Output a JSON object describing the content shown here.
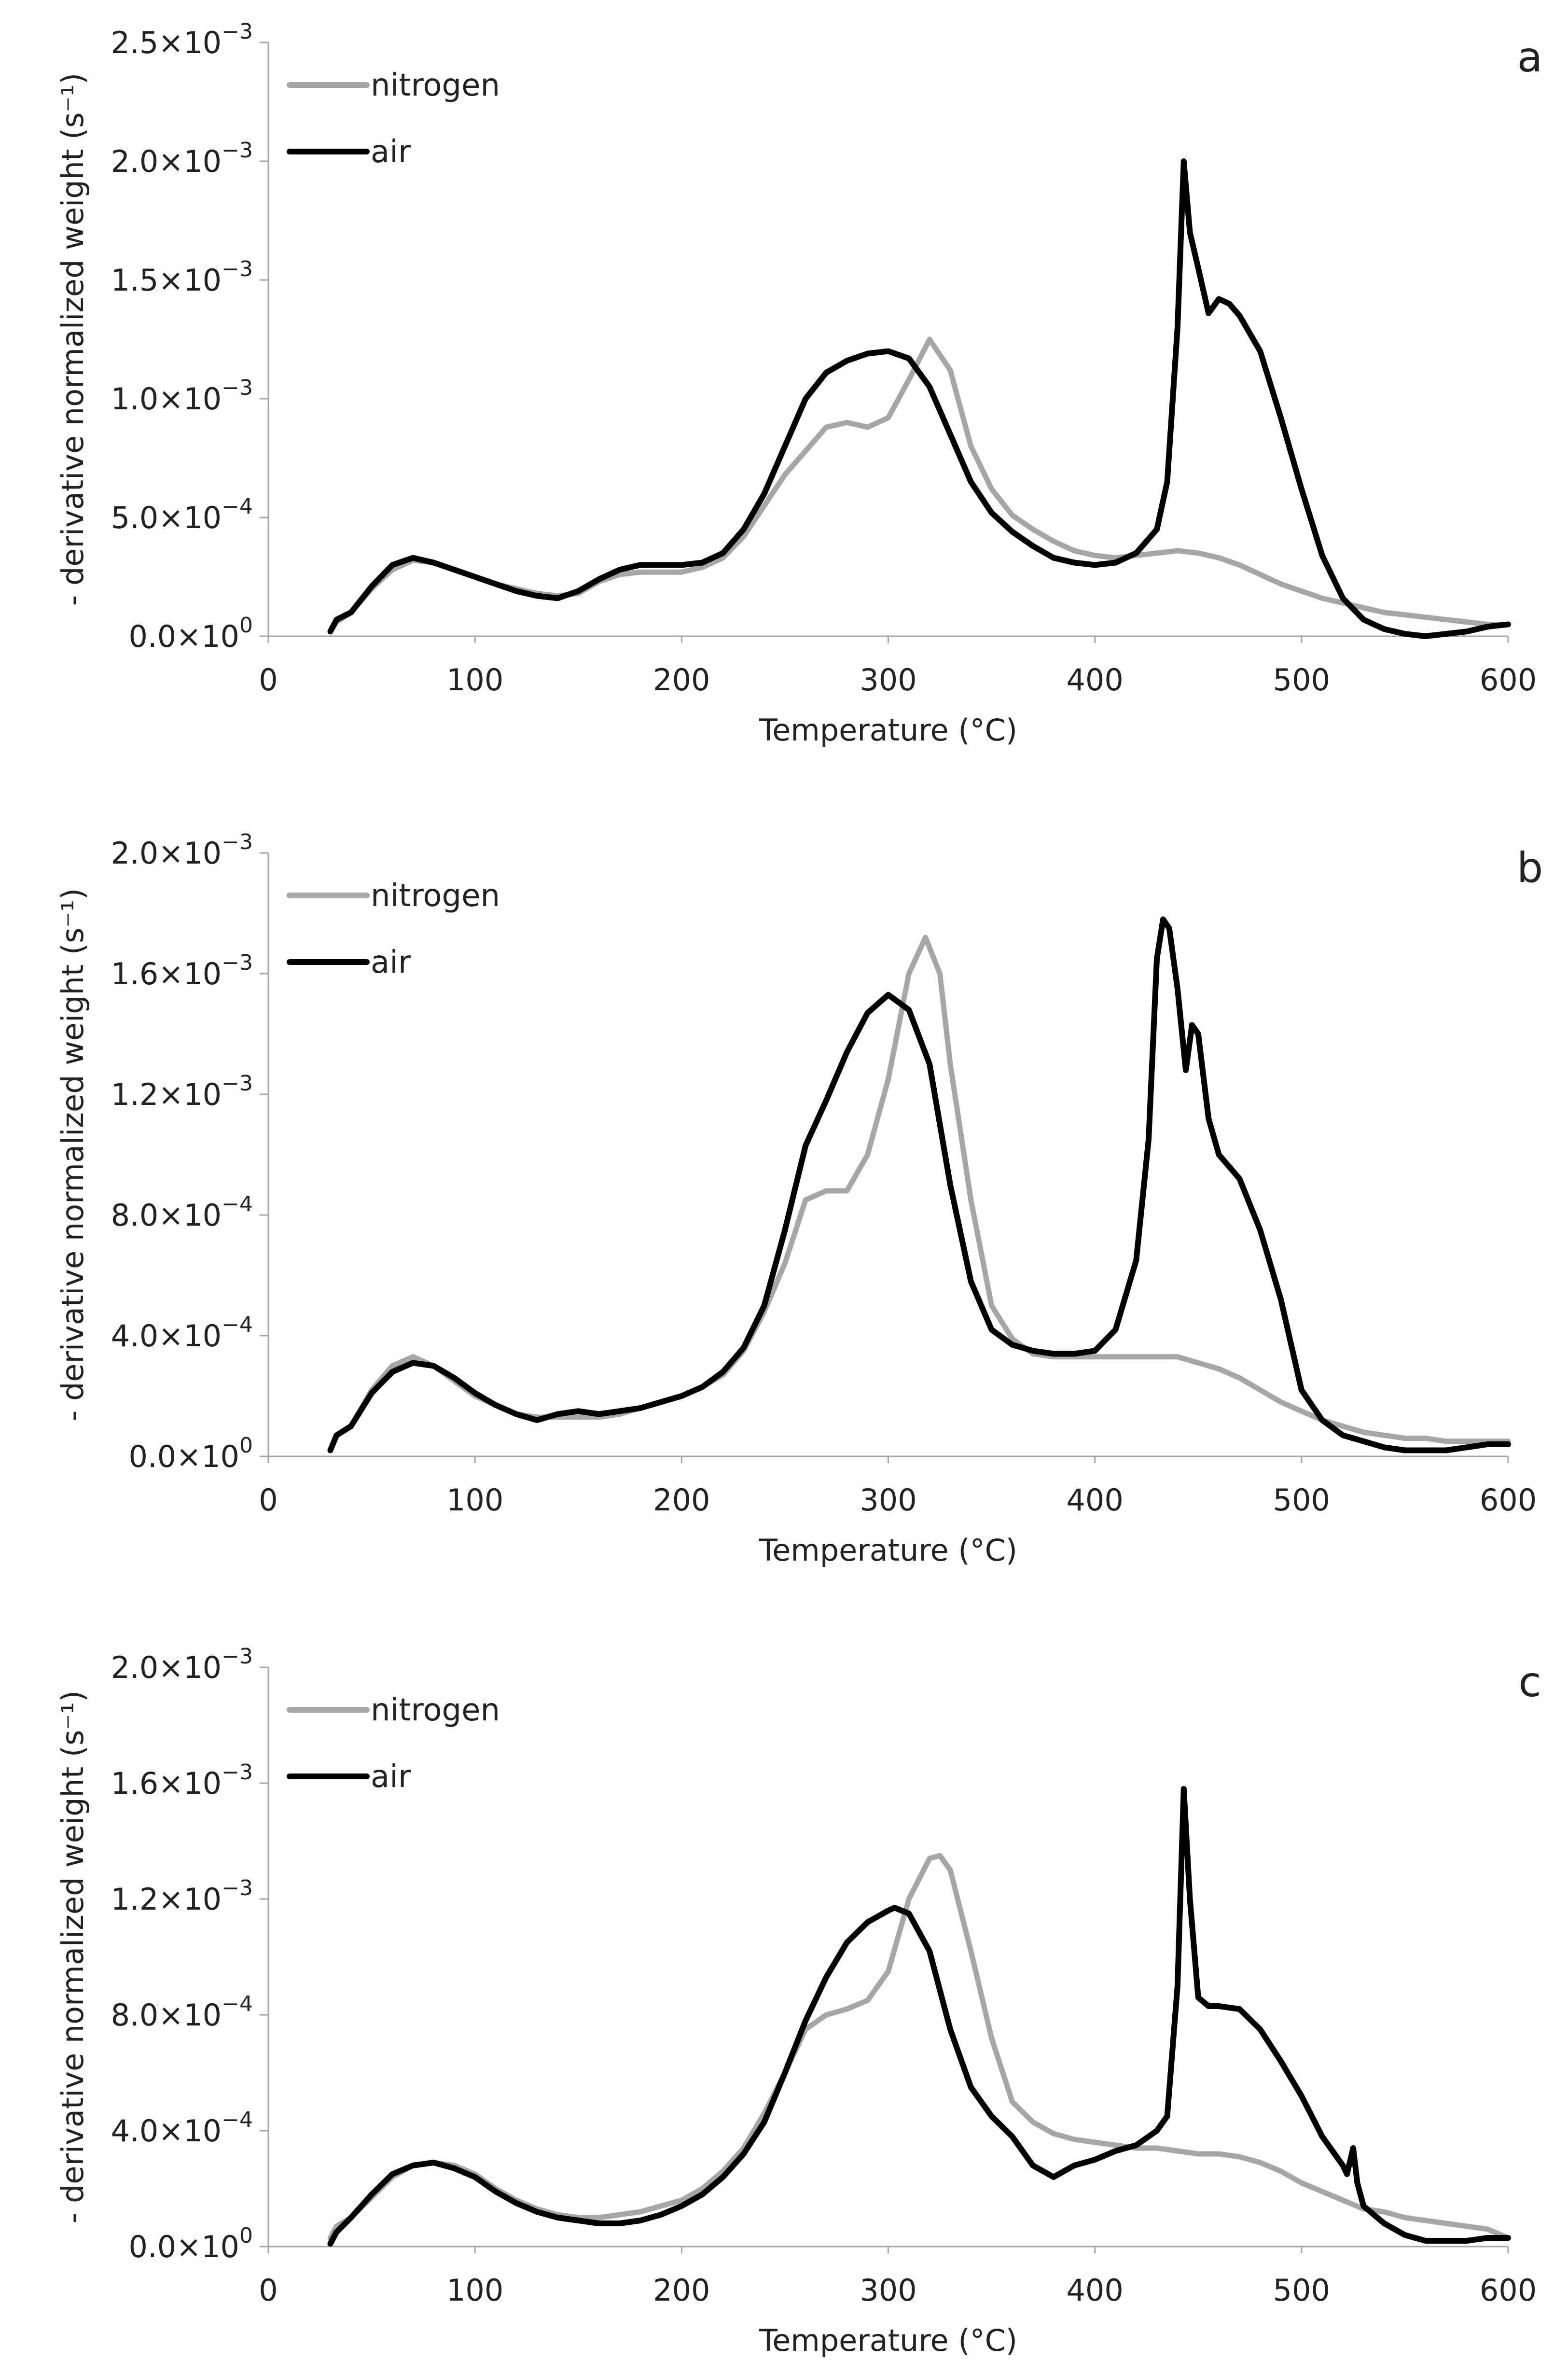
{
  "chart_data": [
    {
      "type": "line",
      "panel": "a",
      "xlabel": "Temperature (°C)",
      "ylabel": "- derivative normalized weight (s⁻¹)",
      "xlim": [
        0,
        600
      ],
      "ylim": [
        0,
        0.0025
      ],
      "x_ticks": [
        0,
        100,
        200,
        300,
        400,
        500,
        600
      ],
      "x_tick_labels": [
        "0",
        "100",
        "200",
        "300",
        "400",
        "500",
        "600"
      ],
      "y_ticks": [
        0,
        0.0005,
        0.001,
        0.0015,
        0.002,
        0.0025
      ],
      "y_tick_labels": [
        {
          "mant": "0.0×10",
          "exp": "0"
        },
        {
          "mant": "5.0×10",
          "exp": "−4"
        },
        {
          "mant": "1.0×10",
          "exp": "−3"
        },
        {
          "mant": "1.5×10",
          "exp": "−3"
        },
        {
          "mant": "2.0×10",
          "exp": "−3"
        },
        {
          "mant": "2.5×10",
          "exp": "−3"
        }
      ],
      "legend": [
        "nitrogen",
        "air"
      ],
      "series": [
        {
          "name": "nitrogen",
          "color": "#a6a6a6",
          "x": [
            30,
            33,
            40,
            50,
            60,
            70,
            80,
            90,
            100,
            110,
            120,
            130,
            140,
            150,
            160,
            170,
            180,
            190,
            200,
            210,
            220,
            230,
            240,
            250,
            260,
            270,
            280,
            290,
            300,
            310,
            320,
            330,
            340,
            350,
            360,
            370,
            380,
            390,
            400,
            410,
            420,
            430,
            440,
            450,
            460,
            470,
            480,
            490,
            500,
            510,
            520,
            530,
            540,
            550,
            560,
            570,
            580,
            590,
            600
          ],
          "y": [
            2e-05,
            6e-05,
            0.0001,
            0.0002,
            0.00028,
            0.00032,
            0.00031,
            0.00028,
            0.00025,
            0.00022,
            0.0002,
            0.00018,
            0.00017,
            0.00018,
            0.00023,
            0.00026,
            0.00027,
            0.00027,
            0.00027,
            0.00029,
            0.00033,
            0.00042,
            0.00055,
            0.00068,
            0.00078,
            0.00088,
            0.0009,
            0.00088,
            0.00092,
            0.00108,
            0.00125,
            0.00112,
            0.0008,
            0.00062,
            0.00051,
            0.00045,
            0.0004,
            0.00036,
            0.00034,
            0.00033,
            0.00034,
            0.00035,
            0.00036,
            0.00035,
            0.00033,
            0.0003,
            0.00026,
            0.00022,
            0.00019,
            0.00016,
            0.00014,
            0.00012,
            0.0001,
            9e-05,
            8e-05,
            7e-05,
            6e-05,
            5e-05,
            5e-05
          ]
        },
        {
          "name": "air",
          "color": "#000000",
          "x": [
            30,
            33,
            40,
            50,
            60,
            70,
            80,
            90,
            100,
            110,
            120,
            130,
            140,
            150,
            160,
            170,
            180,
            190,
            200,
            210,
            220,
            230,
            240,
            250,
            260,
            270,
            280,
            290,
            300,
            310,
            320,
            330,
            340,
            350,
            360,
            370,
            380,
            390,
            400,
            410,
            420,
            430,
            435,
            440,
            443,
            446,
            450,
            455,
            460,
            465,
            470,
            480,
            490,
            500,
            510,
            520,
            530,
            540,
            550,
            560,
            570,
            580,
            590,
            600
          ],
          "y": [
            2e-05,
            7e-05,
            0.0001,
            0.00021,
            0.0003,
            0.00033,
            0.00031,
            0.00028,
            0.00025,
            0.00022,
            0.00019,
            0.00017,
            0.00016,
            0.00019,
            0.00024,
            0.00028,
            0.0003,
            0.0003,
            0.0003,
            0.00031,
            0.00035,
            0.00045,
            0.0006,
            0.0008,
            0.001,
            0.00111,
            0.00116,
            0.00119,
            0.0012,
            0.00117,
            0.00105,
            0.00085,
            0.00065,
            0.00052,
            0.00044,
            0.00038,
            0.00033,
            0.00031,
            0.0003,
            0.00031,
            0.00035,
            0.00045,
            0.00065,
            0.0013,
            0.002,
            0.0017,
            0.00155,
            0.00136,
            0.00142,
            0.0014,
            0.00135,
            0.0012,
            0.00092,
            0.00062,
            0.00034,
            0.00016,
            7e-05,
            3e-05,
            1e-05,
            0,
            1e-05,
            2e-05,
            4e-05,
            5e-05
          ]
        }
      ]
    },
    {
      "type": "line",
      "panel": "b",
      "xlabel": "Temperature (°C)",
      "ylabel": "- derivative normalized weight (s⁻¹)",
      "xlim": [
        0,
        600
      ],
      "ylim": [
        0,
        0.002
      ],
      "x_ticks": [
        0,
        100,
        200,
        300,
        400,
        500,
        600
      ],
      "x_tick_labels": [
        "0",
        "100",
        "200",
        "300",
        "400",
        "500",
        "600"
      ],
      "y_ticks": [
        0,
        0.0004,
        0.0008,
        0.0012,
        0.0016,
        0.002
      ],
      "y_tick_labels": [
        {
          "mant": "0.0×10",
          "exp": "0"
        },
        {
          "mant": "4.0×10",
          "exp": "−4"
        },
        {
          "mant": "8.0×10",
          "exp": "−4"
        },
        {
          "mant": "1.2×10",
          "exp": "−3"
        },
        {
          "mant": "1.6×10",
          "exp": "−3"
        },
        {
          "mant": "2.0×10",
          "exp": "−3"
        }
      ],
      "legend": [
        "nitrogen",
        "air"
      ],
      "series": [
        {
          "name": "nitrogen",
          "color": "#a6a6a6",
          "x": [
            30,
            33,
            40,
            50,
            60,
            70,
            80,
            90,
            100,
            110,
            120,
            130,
            140,
            150,
            160,
            170,
            180,
            190,
            200,
            210,
            220,
            230,
            240,
            250,
            260,
            270,
            280,
            290,
            300,
            310,
            318,
            325,
            330,
            340,
            350,
            360,
            370,
            380,
            390,
            400,
            410,
            420,
            430,
            440,
            450,
            460,
            470,
            480,
            490,
            500,
            510,
            520,
            530,
            540,
            550,
            560,
            570,
            580,
            590,
            600
          ],
          "y": [
            2e-05,
            7e-05,
            0.0001,
            0.00022,
            0.0003,
            0.00033,
            0.0003,
            0.00025,
            0.0002,
            0.00017,
            0.00014,
            0.00013,
            0.00013,
            0.00013,
            0.00013,
            0.00014,
            0.00016,
            0.00018,
            0.0002,
            0.00023,
            0.00027,
            0.00035,
            0.00048,
            0.00064,
            0.00085,
            0.00088,
            0.00088,
            0.001,
            0.00125,
            0.0016,
            0.00172,
            0.0016,
            0.0013,
            0.00085,
            0.0005,
            0.00039,
            0.00034,
            0.00033,
            0.00033,
            0.00033,
            0.00033,
            0.00033,
            0.00033,
            0.00033,
            0.00031,
            0.00029,
            0.00026,
            0.00022,
            0.00018,
            0.00015,
            0.00012,
            0.0001,
            8e-05,
            7e-05,
            6e-05,
            6e-05,
            5e-05,
            5e-05,
            5e-05,
            5e-05
          ]
        },
        {
          "name": "air",
          "color": "#000000",
          "x": [
            30,
            33,
            40,
            50,
            60,
            70,
            80,
            90,
            100,
            110,
            120,
            130,
            140,
            150,
            160,
            170,
            180,
            190,
            200,
            210,
            220,
            230,
            240,
            250,
            260,
            270,
            280,
            290,
            300,
            310,
            320,
            330,
            340,
            350,
            360,
            370,
            380,
            390,
            400,
            410,
            420,
            426,
            430,
            433,
            436,
            440,
            444,
            447,
            450,
            455,
            460,
            470,
            480,
            490,
            500,
            510,
            520,
            530,
            540,
            550,
            560,
            570,
            580,
            590,
            600
          ],
          "y": [
            2e-05,
            7e-05,
            0.0001,
            0.00021,
            0.00028,
            0.00031,
            0.0003,
            0.00026,
            0.00021,
            0.00017,
            0.00014,
            0.00012,
            0.00014,
            0.00015,
            0.00014,
            0.00015,
            0.00016,
            0.00018,
            0.0002,
            0.00023,
            0.00028,
            0.00036,
            0.0005,
            0.00075,
            0.00103,
            0.00118,
            0.00134,
            0.00147,
            0.00153,
            0.00148,
            0.0013,
            0.0009,
            0.00058,
            0.00042,
            0.00037,
            0.00035,
            0.00034,
            0.00034,
            0.00035,
            0.00042,
            0.00065,
            0.00105,
            0.00165,
            0.00178,
            0.00175,
            0.00155,
            0.00128,
            0.00143,
            0.0014,
            0.00112,
            0.001,
            0.00092,
            0.00075,
            0.00052,
            0.00022,
            0.00012,
            7e-05,
            5e-05,
            3e-05,
            2e-05,
            2e-05,
            2e-05,
            3e-05,
            4e-05,
            4e-05
          ]
        }
      ]
    },
    {
      "type": "line",
      "panel": "c",
      "xlabel": "Temperature (°C)",
      "ylabel": "- derivative normalized weight (s⁻¹)",
      "xlim": [
        0,
        600
      ],
      "ylim": [
        0,
        0.002
      ],
      "x_ticks": [
        0,
        100,
        200,
        300,
        400,
        500,
        600
      ],
      "x_tick_labels": [
        "0",
        "100",
        "200",
        "300",
        "400",
        "500",
        "600"
      ],
      "y_ticks": [
        0,
        0.0004,
        0.0008,
        0.0012,
        0.0016,
        0.002
      ],
      "y_tick_labels": [
        {
          "mant": "0.0×10",
          "exp": "0"
        },
        {
          "mant": "4.0×10",
          "exp": "−4"
        },
        {
          "mant": "8.0×10",
          "exp": "−4"
        },
        {
          "mant": "1.2×10",
          "exp": "−3"
        },
        {
          "mant": "1.6×10",
          "exp": "−3"
        },
        {
          "mant": "2.0×10",
          "exp": "−3"
        }
      ],
      "legend": [
        "nitrogen",
        "air"
      ],
      "series": [
        {
          "name": "nitrogen",
          "color": "#a6a6a6",
          "x": [
            30,
            33,
            40,
            50,
            60,
            70,
            80,
            90,
            100,
            110,
            120,
            130,
            140,
            150,
            160,
            170,
            180,
            190,
            200,
            210,
            220,
            230,
            240,
            250,
            260,
            270,
            280,
            290,
            300,
            310,
            320,
            325,
            330,
            340,
            350,
            360,
            370,
            380,
            390,
            400,
            410,
            420,
            430,
            440,
            450,
            460,
            470,
            480,
            490,
            500,
            510,
            520,
            530,
            540,
            550,
            560,
            570,
            580,
            590,
            600
          ],
          "y": [
            3e-05,
            7e-05,
            0.0001,
            0.00017,
            0.00024,
            0.00028,
            0.00029,
            0.00028,
            0.00025,
            0.0002,
            0.00016,
            0.00013,
            0.00011,
            0.0001,
            0.0001,
            0.00011,
            0.00012,
            0.00014,
            0.00016,
            0.0002,
            0.00026,
            0.00034,
            0.00046,
            0.0006,
            0.00075,
            0.0008,
            0.00082,
            0.00085,
            0.00095,
            0.0012,
            0.00134,
            0.00135,
            0.0013,
            0.00102,
            0.00072,
            0.0005,
            0.00043,
            0.00039,
            0.00037,
            0.00036,
            0.00035,
            0.00034,
            0.00034,
            0.00033,
            0.00032,
            0.00032,
            0.00031,
            0.00029,
            0.00026,
            0.00022,
            0.00019,
            0.00016,
            0.00013,
            0.00012,
            0.0001,
            9e-05,
            8e-05,
            7e-05,
            6e-05,
            3e-05
          ]
        },
        {
          "name": "air",
          "color": "#000000",
          "x": [
            30,
            33,
            40,
            50,
            60,
            70,
            80,
            90,
            100,
            110,
            120,
            130,
            140,
            150,
            160,
            170,
            180,
            190,
            200,
            210,
            220,
            230,
            240,
            250,
            260,
            270,
            280,
            290,
            300,
            303,
            310,
            320,
            330,
            340,
            350,
            360,
            370,
            380,
            390,
            400,
            410,
            420,
            430,
            435,
            440,
            443,
            446,
            450,
            455,
            460,
            470,
            480,
            490,
            500,
            510,
            520,
            522,
            525,
            527,
            530,
            540,
            550,
            560,
            570,
            580,
            590,
            600
          ],
          "y": [
            1e-05,
            5e-05,
            0.0001,
            0.00018,
            0.00025,
            0.00028,
            0.00029,
            0.00027,
            0.00024,
            0.00019,
            0.00015,
            0.00012,
            0.0001,
            9e-05,
            8e-05,
            8e-05,
            9e-05,
            0.00011,
            0.00014,
            0.00018,
            0.00024,
            0.00032,
            0.00043,
            0.0006,
            0.00078,
            0.00093,
            0.00105,
            0.00112,
            0.00116,
            0.00117,
            0.00115,
            0.00102,
            0.00075,
            0.00055,
            0.00045,
            0.00038,
            0.00028,
            0.00024,
            0.00028,
            0.0003,
            0.00033,
            0.00035,
            0.0004,
            0.00045,
            0.0009,
            0.00158,
            0.0012,
            0.00086,
            0.00083,
            0.00083,
            0.00082,
            0.00075,
            0.00064,
            0.00052,
            0.00038,
            0.00028,
            0.00025,
            0.00034,
            0.00022,
            0.00014,
            8e-05,
            4e-05,
            2e-05,
            2e-05,
            2e-05,
            3e-05,
            3e-05
          ]
        }
      ]
    }
  ]
}
